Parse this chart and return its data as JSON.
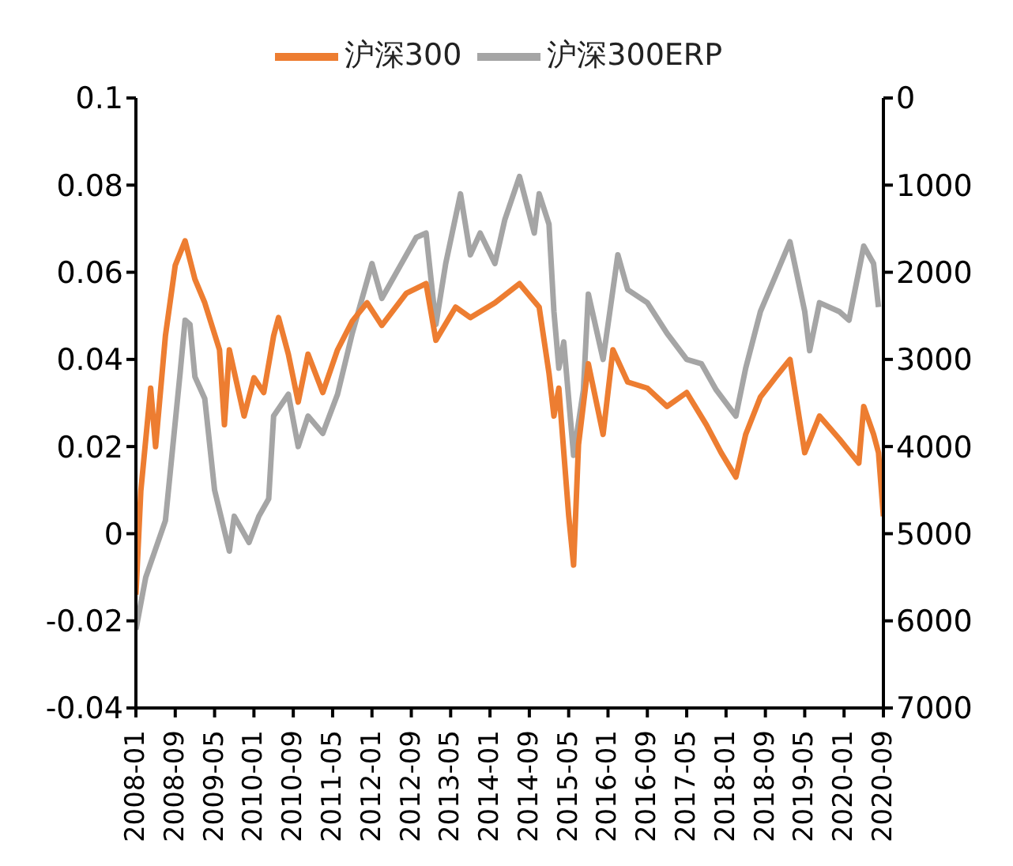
{
  "chart_data": {
    "type": "line",
    "legend": "top",
    "marker": "none",
    "line_style": "solid",
    "xlim": [
      "2008-01",
      "2020-09"
    ],
    "xticks": [
      "2008-01",
      "2008-09",
      "2009-05",
      "2010-01",
      "2010-09",
      "2011-05",
      "2012-01",
      "2012-09",
      "2013-05",
      "2014-01",
      "2014-09",
      "2015-05",
      "2016-01",
      "2016-09",
      "2017-05",
      "2018-01",
      "2018-09",
      "2019-05",
      "2020-01",
      "2020-09"
    ],
    "ylim": [
      -0.04,
      0.1
    ],
    "yticks": [
      -0.04,
      -0.02,
      0,
      0.02,
      0.04,
      0.06,
      0.08,
      0.1
    ],
    "y2lim": [
      7000,
      0
    ],
    "y2ticks": [
      7000,
      6000,
      5000,
      4000,
      3000,
      2000,
      1000,
      0
    ],
    "series": [
      {
        "name": "沪深300ERP",
        "color": "#a5a5a5",
        "x": [
          "2008-01",
          "2008-03",
          "2008-07",
          "2008-10",
          "2008-11",
          "2008-12",
          "2009-01",
          "2009-03",
          "2009-05",
          "2009-08",
          "2009-09",
          "2009-12",
          "2010-02",
          "2010-04",
          "2010-05",
          "2010-08",
          "2010-10",
          "2010-12",
          "2011-03",
          "2011-06",
          "2011-09",
          "2012-01",
          "2012-03",
          "2012-10",
          "2012-12",
          "2013-02",
          "2013-04",
          "2013-07",
          "2013-09",
          "2013-11",
          "2014-02",
          "2014-04",
          "2014-07",
          "2014-10",
          "2014-11",
          "2015-01",
          "2015-02",
          "2015-03",
          "2015-04",
          "2015-06",
          "2015-08",
          "2015-09",
          "2015-12",
          "2016-03",
          "2016-05",
          "2016-09",
          "2017-01",
          "2017-05",
          "2017-08",
          "2017-11",
          "2018-03",
          "2018-05",
          "2018-08",
          "2018-11",
          "2019-02",
          "2019-05",
          "2019-06",
          "2019-08",
          "2019-12",
          "2020-02",
          "2020-05",
          "2020-07",
          "2020-08"
        ],
        "values": [
          -0.022,
          -0.01,
          0.003,
          0.037,
          0.049,
          0.048,
          0.036,
          0.031,
          0.01,
          -0.004,
          0.004,
          -0.002,
          0.004,
          0.008,
          0.027,
          0.032,
          0.02,
          0.027,
          0.023,
          0.032,
          0.046,
          0.062,
          0.054,
          0.068,
          0.069,
          0.048,
          0.062,
          0.078,
          0.064,
          0.069,
          0.062,
          0.072,
          0.082,
          0.069,
          0.078,
          0.071,
          0.051,
          0.038,
          0.044,
          0.018,
          0.033,
          0.055,
          0.04,
          0.064,
          0.056,
          0.053,
          0.046,
          0.04,
          0.039,
          0.033,
          0.027,
          0.038,
          0.051,
          0.059,
          0.067,
          0.051,
          0.042,
          0.053,
          0.051,
          0.049,
          0.066,
          0.062,
          0.052
        ]
      },
      {
        "name": "沪深300",
        "color": "#ed7d31",
        "axis": "y2",
        "x": [
          "2008-01",
          "2008-02",
          "2008-04",
          "2008-05",
          "2008-07",
          "2008-09",
          "2008-11",
          "2009-01",
          "2009-03",
          "2009-06",
          "2009-07",
          "2009-08",
          "2009-11",
          "2010-01",
          "2010-03",
          "2010-05",
          "2010-06",
          "2010-08",
          "2010-10",
          "2010-12",
          "2011-03",
          "2011-06",
          "2011-09",
          "2011-12",
          "2012-03",
          "2012-08",
          "2012-12",
          "2013-02",
          "2013-06",
          "2013-09",
          "2014-02",
          "2014-07",
          "2014-11",
          "2015-01",
          "2015-02",
          "2015-03",
          "2015-05",
          "2015-06",
          "2015-07",
          "2015-09",
          "2015-12",
          "2016-02",
          "2016-05",
          "2016-09",
          "2017-01",
          "2017-05",
          "2017-09",
          "2017-12",
          "2018-03",
          "2018-05",
          "2018-08",
          "2018-11",
          "2019-02",
          "2019-05",
          "2019-08",
          "2019-12",
          "2020-04",
          "2020-05",
          "2020-07",
          "2020-08",
          "2020-09"
        ],
        "values": [
          5700,
          4510,
          3330,
          4000,
          2730,
          1920,
          1640,
          2080,
          2350,
          2890,
          3750,
          2890,
          3650,
          3210,
          3380,
          2730,
          2520,
          2940,
          3490,
          2940,
          3380,
          2890,
          2560,
          2350,
          2610,
          2240,
          2130,
          2780,
          2400,
          2520,
          2350,
          2130,
          2400,
          3160,
          3650,
          3330,
          4790,
          5360,
          3980,
          3050,
          3860,
          2890,
          3260,
          3330,
          3540,
          3380,
          3750,
          4070,
          4350,
          3860,
          3430,
          3210,
          3000,
          4070,
          3650,
          3910,
          4190,
          3540,
          3860,
          4070,
          4800
        ]
      }
    ]
  }
}
